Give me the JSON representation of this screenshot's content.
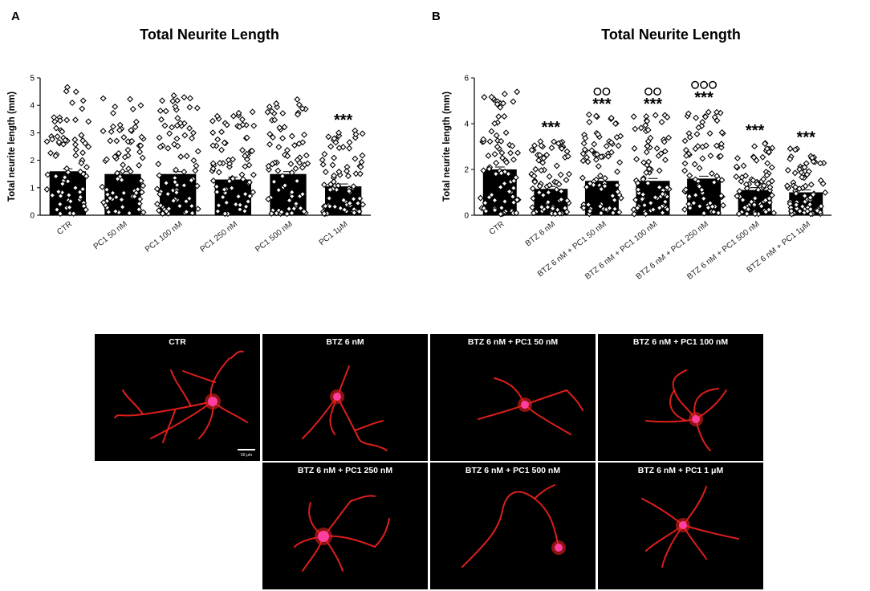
{
  "panels": {
    "a": {
      "letter": "A"
    },
    "b": {
      "letter": "B"
    }
  },
  "colors": {
    "bar": "#000000",
    "marker": "#000000",
    "marker_fill": "#ffffff",
    "neurite": "#e8201c",
    "soma": "#ff3fa0",
    "micro_bg": "#000000"
  },
  "chart_data": [
    {
      "id": "A",
      "type": "bar",
      "title": "Total Neurite Length",
      "xlabel": "",
      "ylabel": "Total neurite length (mm)",
      "ylim": [
        0,
        5
      ],
      "yticks": [
        "0",
        "1",
        "2",
        "3",
        "4",
        "5"
      ],
      "categories": [
        "CTR",
        "PC1 50 nM",
        "PC1 100 nM",
        "PC1 250 nM",
        "PC1 500 nM",
        "PC1 1μM"
      ],
      "values": [
        1.6,
        1.5,
        1.5,
        1.3,
        1.5,
        1.05
      ],
      "significance": [
        "",
        "",
        "",
        "",
        "",
        "***"
      ],
      "individual_points": "open diamonds per neuron, ~80 per group, range 0–4.7 mm"
    },
    {
      "id": "B",
      "type": "bar",
      "title": "Total Neurite Length",
      "xlabel": "",
      "ylabel": "Total neurite length (mm)",
      "ylim": [
        0,
        6
      ],
      "yticks": [
        "0",
        "2",
        "4",
        "6"
      ],
      "categories": [
        "CTR",
        "BTZ 6 nM",
        "BTZ 6 nM + PC1 50 nM",
        "BTZ 6 nM + PC1 100 nM",
        "BTZ 6 nM + PC1 250 nM",
        "BTZ 6 nM + PC1 500 nM",
        "BTZ 6 nM + PC1 1μM"
      ],
      "values": [
        2.0,
        1.15,
        1.5,
        1.5,
        1.6,
        1.1,
        1.0
      ],
      "significance": [
        "",
        "***",
        "***",
        "***",
        "***",
        "***",
        "***"
      ],
      "circles": [
        0,
        0,
        2,
        2,
        3,
        0,
        0
      ],
      "individual_points": "open diamonds per neuron, ~80 per group, range 0–5.3 mm"
    }
  ],
  "micrographs": [
    {
      "label": "CTR",
      "scale_bar": "50 μm"
    },
    {
      "label": "BTZ 6 nM"
    },
    {
      "label": "BTZ 6 nM + PC1 50 nM"
    },
    {
      "label": "BTZ 6 nM + PC1 100 nM"
    },
    {
      "label": "BTZ 6 nM + PC1 250 nM"
    },
    {
      "label": "BTZ 6 nM + PC1 500 nM"
    },
    {
      "label": "BTZ 6 nM + PC1 1 μM"
    }
  ]
}
